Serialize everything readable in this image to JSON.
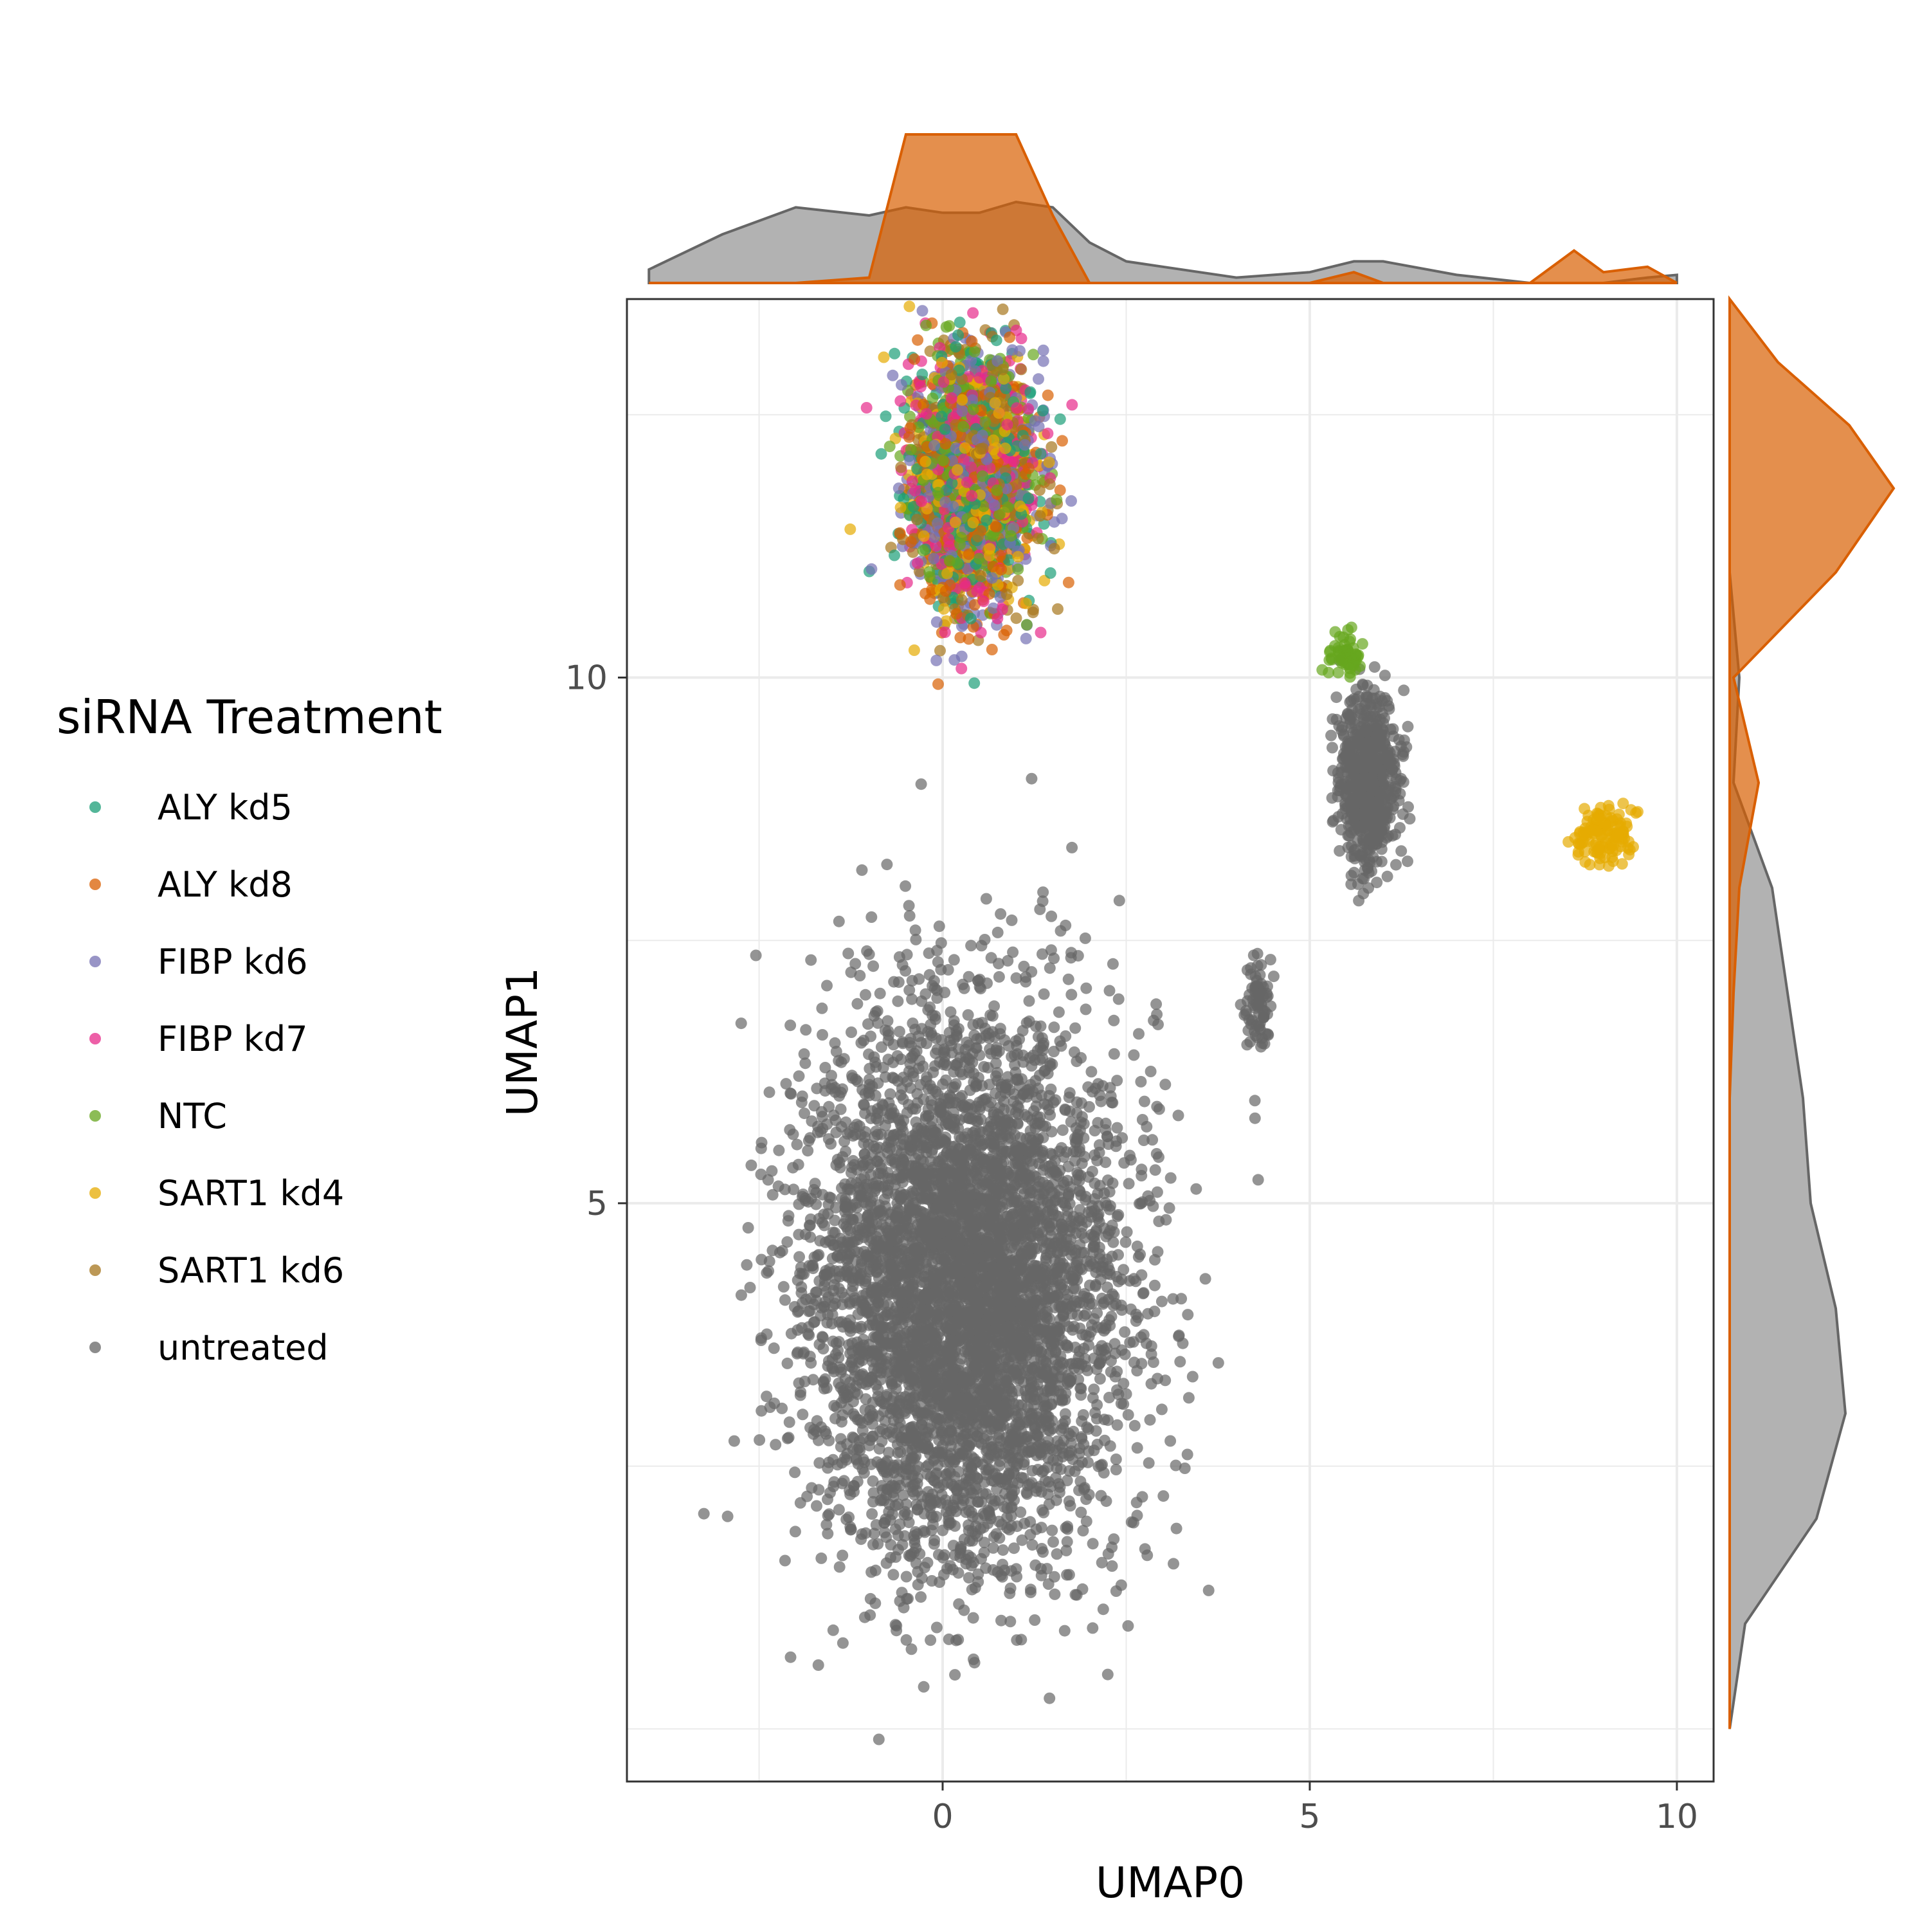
{
  "chart_data": {
    "type": "scatter",
    "subtype": "umap-with-marginal-densities",
    "xlabel": "UMAP0",
    "ylabel": "UMAP1",
    "xlim": [
      -4.3,
      10.5
    ],
    "ylim": [
      -0.5,
      13.6
    ],
    "x_ticks": [
      0,
      5,
      10
    ],
    "y_ticks": [
      5,
      10
    ],
    "x_tick_labels": [
      "0",
      "5",
      "10"
    ],
    "y_tick_labels": [
      "5",
      "10"
    ],
    "grid": true,
    "legend": {
      "title": "siRNA Treatment",
      "placement": "left",
      "entries": [
        "ALY kd5",
        "ALY kd8",
        "FIBP kd6",
        "FIBP kd7",
        "NTC",
        "SART1 kd4",
        "SART1 kd6",
        "untreated"
      ]
    },
    "series": [
      {
        "name": "ALY kd5",
        "color": "#1B9E77"
      },
      {
        "name": "ALY kd8",
        "color": "#D95F02"
      },
      {
        "name": "FIBP kd6",
        "color": "#7570B3"
      },
      {
        "name": "FIBP kd7",
        "color": "#E7298A"
      },
      {
        "name": "NTC",
        "color": "#66A61E"
      },
      {
        "name": "SART1 kd4",
        "color": "#E6AB02"
      },
      {
        "name": "SART1 kd6",
        "color": "#A6761D"
      },
      {
        "name": "untreated",
        "color": "#666666"
      }
    ],
    "clusters": [
      {
        "series": "treated-mix",
        "center": [
          0.4,
          11.9
        ],
        "spread": [
          0.75,
          1.05
        ],
        "n": 2600
      },
      {
        "series": "untreated",
        "center": [
          0.3,
          4.2
        ],
        "spread": [
          1.9,
          2.3
        ],
        "n": 5200
      },
      {
        "series": "untreated",
        "center": [
          5.8,
          9.0
        ],
        "spread": [
          0.35,
          0.75
        ],
        "n": 700
      },
      {
        "series": "untreated",
        "center": [
          4.3,
          6.9
        ],
        "spread": [
          0.15,
          0.35
        ],
        "n": 80
      },
      {
        "series": "SART1 kd4",
        "center": [
          9.0,
          8.5
        ],
        "spread": [
          0.35,
          0.25
        ],
        "n": 120
      },
      {
        "series": "NTC",
        "center": [
          5.5,
          10.2
        ],
        "spread": [
          0.2,
          0.2
        ],
        "n": 60
      }
    ],
    "marginal_x": {
      "x": [
        -4.0,
        -3.0,
        -2.0,
        -1.0,
        -0.5,
        0.0,
        0.5,
        1.0,
        1.5,
        2.0,
        2.5,
        3.0,
        4.0,
        5.0,
        5.6,
        6.0,
        7.0,
        8.0,
        8.6,
        9.0,
        9.6,
        10.0
      ],
      "untreated": [
        0.05,
        0.18,
        0.28,
        0.25,
        0.28,
        0.26,
        0.26,
        0.3,
        0.28,
        0.15,
        0.08,
        0.06,
        0.02,
        0.04,
        0.08,
        0.08,
        0.03,
        0.0,
        0.0,
        0.0,
        0.02,
        0.03
      ],
      "treated": [
        0.0,
        0.0,
        0.0,
        0.02,
        0.55,
        0.55,
        0.55,
        0.55,
        0.25,
        0.0,
        0.0,
        0.0,
        0.0,
        0.0,
        0.04,
        0.0,
        0.0,
        0.0,
        0.12,
        0.04,
        0.06,
        0.0
      ]
    },
    "marginal_y": {
      "y": [
        0,
        1,
        2,
        3,
        4,
        5,
        6,
        7,
        8,
        9,
        10,
        11,
        11.8,
        12.4,
        13,
        13.6
      ],
      "untreated": [
        0.0,
        0.08,
        0.45,
        0.6,
        0.55,
        0.42,
        0.38,
        0.3,
        0.22,
        0.02,
        0.05,
        0.0,
        0.0,
        0.0,
        0.0,
        0.0
      ],
      "treated": [
        0.0,
        0.0,
        0.0,
        0.0,
        0.0,
        0.0,
        0.0,
        0.02,
        0.05,
        0.15,
        0.02,
        0.55,
        0.85,
        0.62,
        0.25,
        0.0
      ]
    }
  }
}
